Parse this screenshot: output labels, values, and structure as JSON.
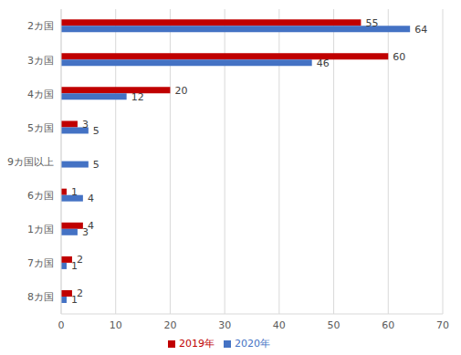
{
  "chart_data": {
    "type": "bar",
    "orientation": "horizontal",
    "categories": [
      "2カ国",
      "3カ国",
      "4カ国",
      "5カ国",
      "9カ国以上",
      "6カ国",
      "1カ国",
      "7カ国",
      "8カ国"
    ],
    "series": [
      {
        "name": "2019年",
        "color": "#c00000",
        "values": [
          55,
          60,
          20,
          3,
          0,
          1,
          4,
          2,
          2
        ]
      },
      {
        "name": "2020年",
        "color": "#4472c4",
        "values": [
          64,
          46,
          12,
          5,
          5,
          4,
          3,
          1,
          1
        ]
      }
    ],
    "xlim": [
      0,
      70
    ],
    "xticks": [
      0,
      10,
      20,
      30,
      40,
      50,
      60,
      70
    ],
    "grid": true,
    "legend": "bottom",
    "data_labels": true
  }
}
